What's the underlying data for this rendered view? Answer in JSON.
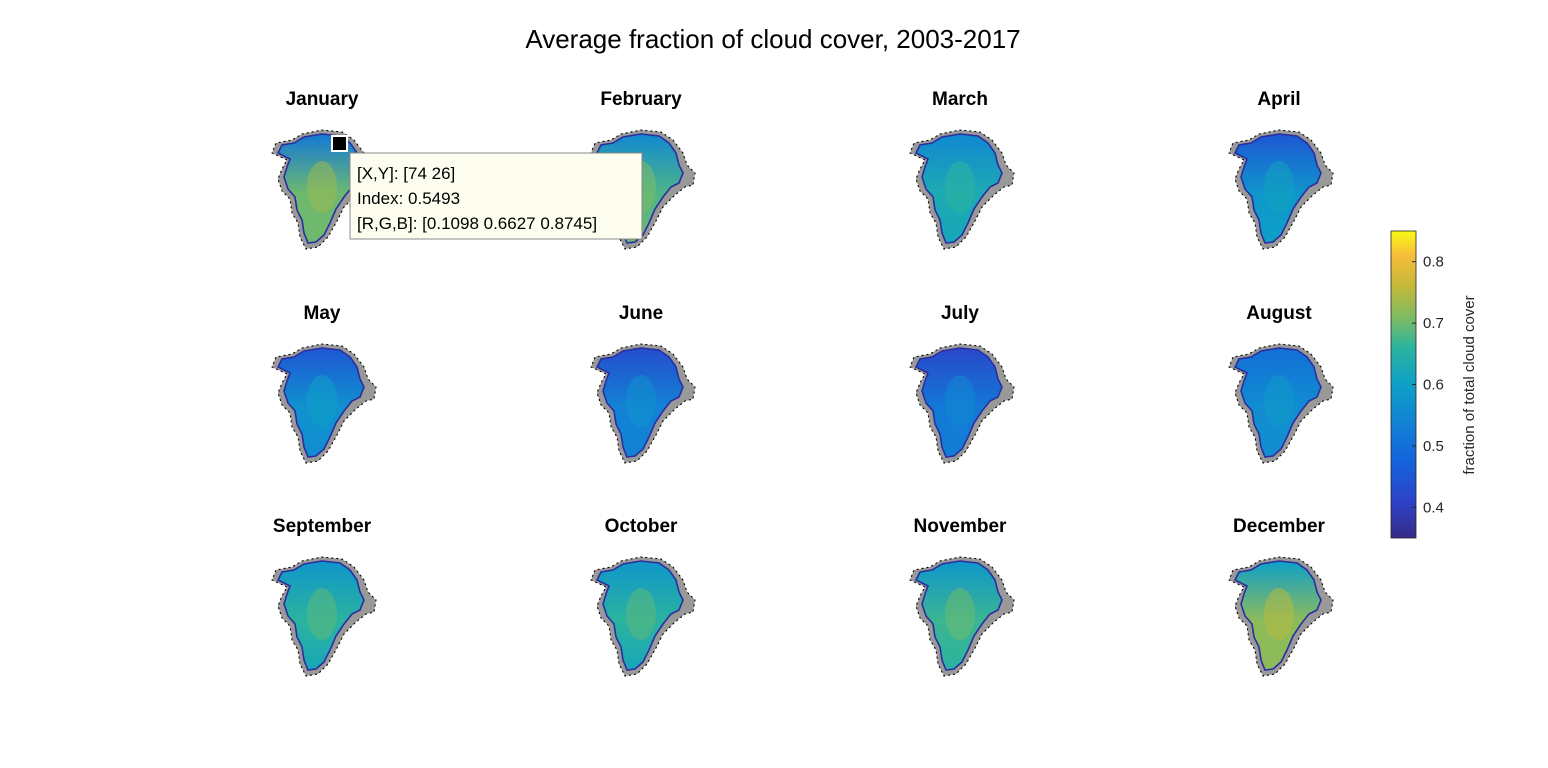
{
  "figure": {
    "title": "Average fraction of cloud cover, 2003-2017"
  },
  "chart_data": {
    "type": "heatmap",
    "title": "Average fraction of cloud cover, 2003-2017",
    "panels": [
      {
        "name": "January",
        "mean_fraction": 0.7,
        "north_fraction": 0.52,
        "south_fraction": 0.7
      },
      {
        "name": "February",
        "mean_fraction": 0.68,
        "north_fraction": 0.55,
        "south_fraction": 0.7
      },
      {
        "name": "March",
        "mean_fraction": 0.63,
        "north_fraction": 0.55,
        "south_fraction": 0.62
      },
      {
        "name": "April",
        "mean_fraction": 0.58,
        "north_fraction": 0.45,
        "south_fraction": 0.6
      },
      {
        "name": "May",
        "mean_fraction": 0.57,
        "north_fraction": 0.45,
        "south_fraction": 0.56
      },
      {
        "name": "June",
        "mean_fraction": 0.54,
        "north_fraction": 0.43,
        "south_fraction": 0.54
      },
      {
        "name": "July",
        "mean_fraction": 0.52,
        "north_fraction": 0.42,
        "south_fraction": 0.53
      },
      {
        "name": "August",
        "mean_fraction": 0.56,
        "north_fraction": 0.5,
        "south_fraction": 0.56
      },
      {
        "name": "September",
        "mean_fraction": 0.66,
        "north_fraction": 0.58,
        "south_fraction": 0.62
      },
      {
        "name": "October",
        "mean_fraction": 0.66,
        "north_fraction": 0.58,
        "south_fraction": 0.62
      },
      {
        "name": "November",
        "mean_fraction": 0.67,
        "north_fraction": 0.58,
        "south_fraction": 0.66
      },
      {
        "name": "December",
        "mean_fraction": 0.72,
        "north_fraction": 0.6,
        "south_fraction": 0.72
      }
    ],
    "colorbar": {
      "label": "fraction of total cloud cover",
      "range": [
        0.35,
        0.85
      ],
      "ticks": [
        0.4,
        0.5,
        0.6,
        0.7,
        0.8
      ],
      "colormap": "parula"
    },
    "colors": {
      "land_mask": "#999999",
      "coast_outline": "#000000",
      "edge_pixels": "#2b2ea0"
    }
  },
  "datatip": {
    "line1": "[X,Y]: [74 26]",
    "line2": "Index: 0.5493",
    "line3": "[R,G,B]: [0.1098 0.6627 0.8745]",
    "background": "#fefef0",
    "panel": "January"
  }
}
